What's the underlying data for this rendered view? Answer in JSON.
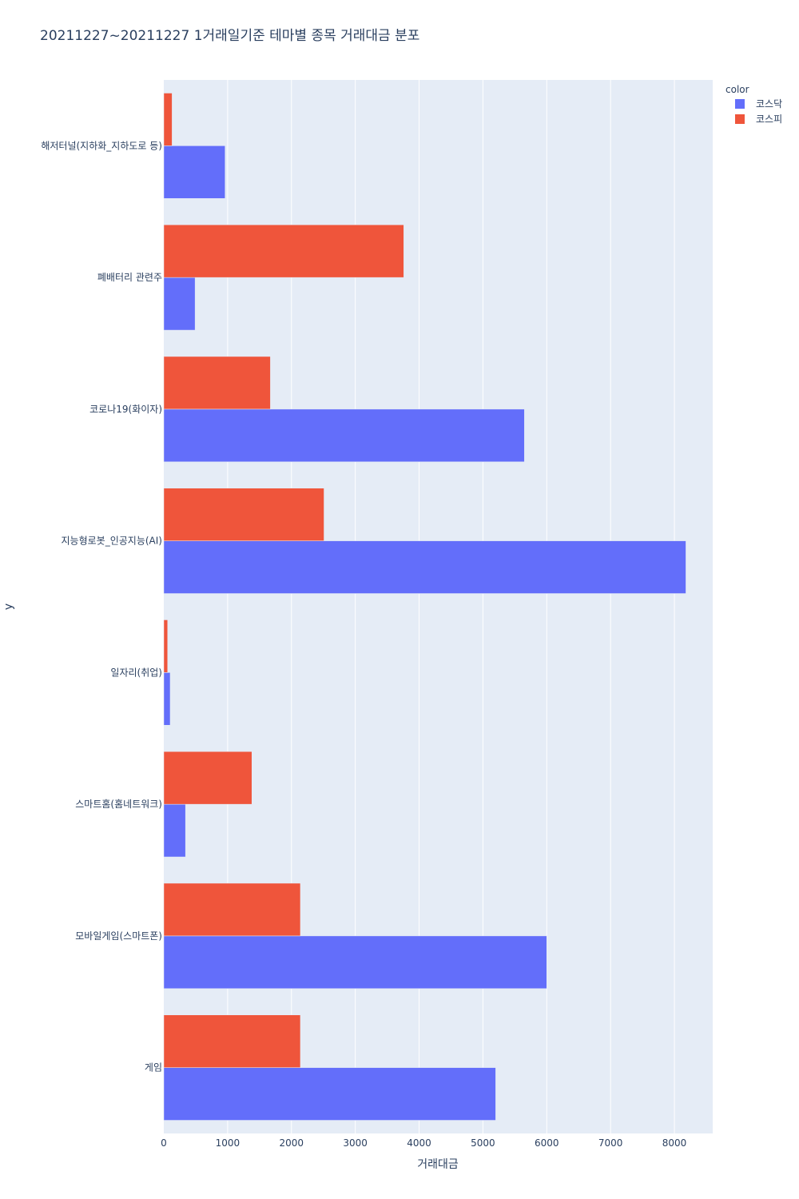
{
  "chart_data": {
    "type": "bar",
    "orientation": "horizontal",
    "barmode": "group",
    "title": "20211227~20211227 1거래일기준 테마별 종목 거래대금 분포",
    "xlabel": "거래대금",
    "ylabel": "y",
    "xlim": [
      0,
      8600
    ],
    "xticks": [
      0,
      1000,
      2000,
      3000,
      4000,
      5000,
      6000,
      7000,
      8000
    ],
    "xtick_labels": [
      "0",
      "1000",
      "2000",
      "3000",
      "4000",
      "5000",
      "6000",
      "7000",
      "8000"
    ],
    "categories": [
      "해저터널(지하화_지하도로 등)",
      "폐배터리 관련주",
      "코로나19(화이자)",
      "지능형로봇_인공지능(AI)",
      "일자리(취업)",
      "스마트홈(홈네트워크)",
      "모바일게임(스마트폰)",
      "게임"
    ],
    "series": [
      {
        "name": "코스닥",
        "color": "#636efa",
        "values": [
          960,
          490,
          5650,
          8180,
          100,
          340,
          6000,
          5200
        ]
      },
      {
        "name": "코스피",
        "color": "#ef553b",
        "values": [
          130,
          3760,
          1670,
          2510,
          60,
          1380,
          2140,
          2140
        ]
      }
    ],
    "legend": {
      "title": "color",
      "position": "top-right"
    },
    "grid": true,
    "plot_bgcolor": "#e5ecf6",
    "gridcolor": "#ffffff"
  }
}
